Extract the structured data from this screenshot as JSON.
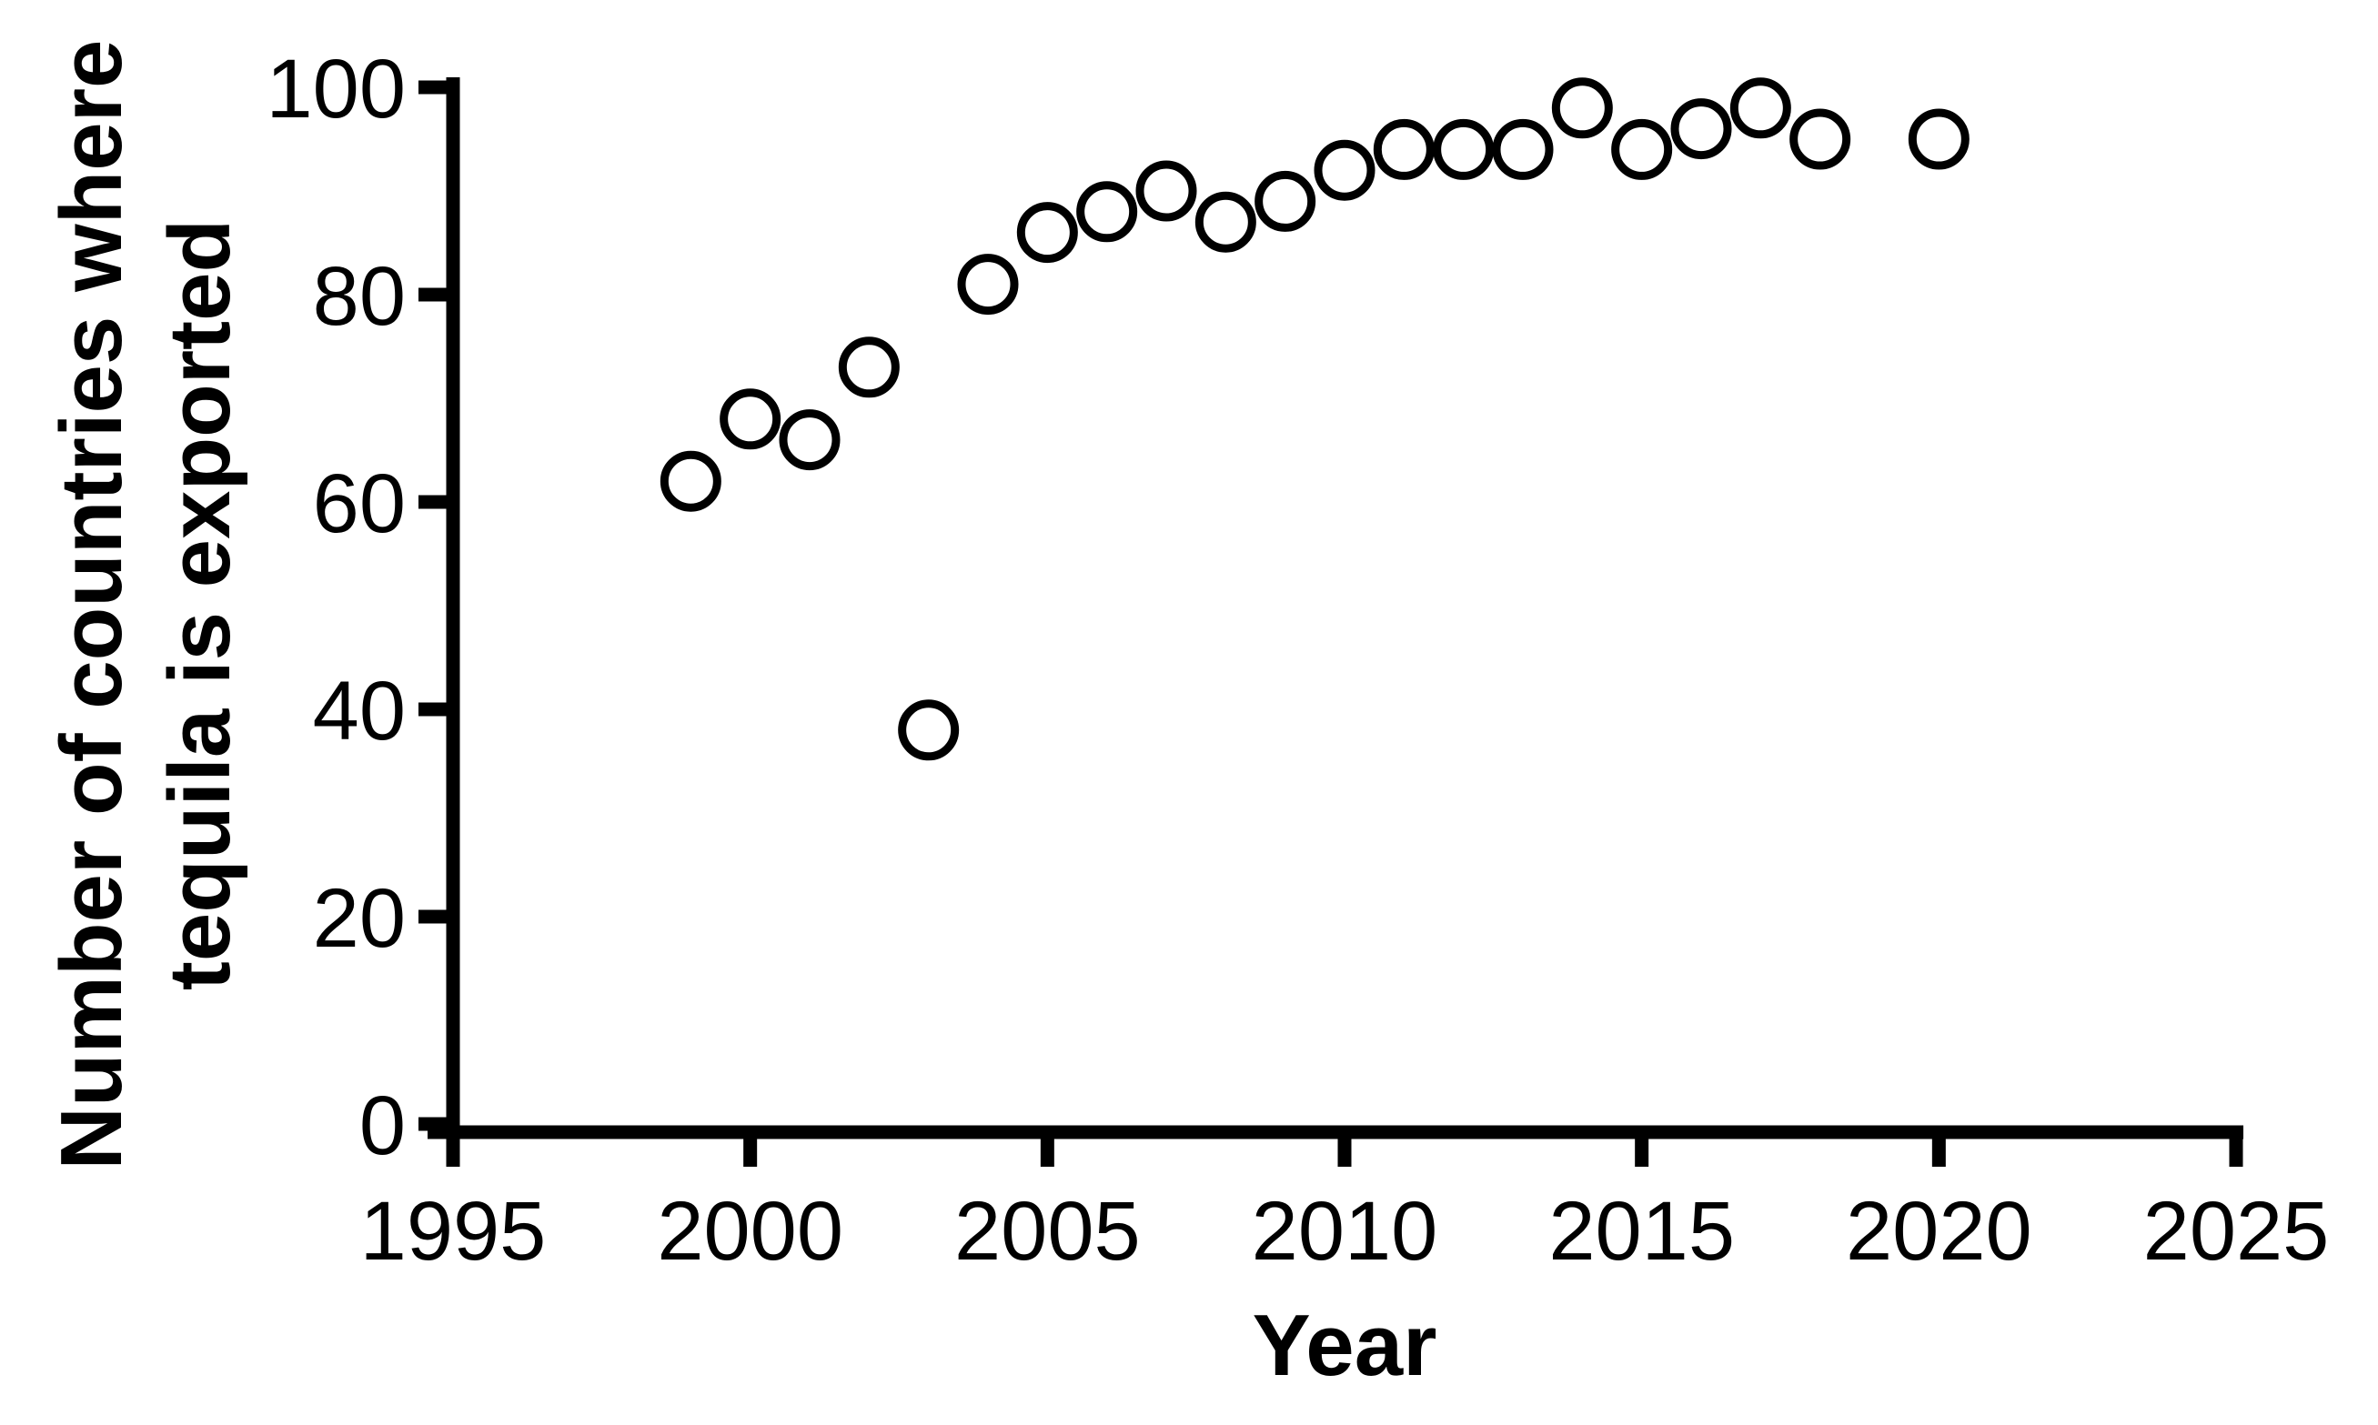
{
  "chart_data": {
    "type": "scatter",
    "title": "",
    "xlabel": "Year",
    "ylabel": "Number of countries where tequila is exported",
    "ylabel_lines": [
      "Number of countries where",
      "tequila is exported"
    ],
    "series": [
      {
        "name": "Countries where tequila is exported",
        "marker": "open-circle",
        "points": [
          {
            "x": 1999,
            "y": 62
          },
          {
            "x": 2000,
            "y": 68
          },
          {
            "x": 2001,
            "y": 66
          },
          {
            "x": 2002,
            "y": 73
          },
          {
            "x": 2003,
            "y": 38
          },
          {
            "x": 2004,
            "y": 81
          },
          {
            "x": 2005,
            "y": 86
          },
          {
            "x": 2006,
            "y": 88
          },
          {
            "x": 2007,
            "y": 90
          },
          {
            "x": 2008,
            "y": 87
          },
          {
            "x": 2009,
            "y": 89
          },
          {
            "x": 2010,
            "y": 92
          },
          {
            "x": 2011,
            "y": 94
          },
          {
            "x": 2012,
            "y": 94
          },
          {
            "x": 2013,
            "y": 94
          },
          {
            "x": 2014,
            "y": 98
          },
          {
            "x": 2015,
            "y": 94
          },
          {
            "x": 2016,
            "y": 96
          },
          {
            "x": 2017,
            "y": 98
          },
          {
            "x": 2018,
            "y": 95
          },
          {
            "x": 2020,
            "y": 95
          }
        ]
      }
    ],
    "xlim": [
      1995,
      2025
    ],
    "ylim": [
      0,
      100
    ],
    "x_ticks": [
      1995,
      2000,
      2005,
      2010,
      2015,
      2020,
      2025
    ],
    "y_ticks": [
      0,
      20,
      40,
      60,
      80,
      100
    ],
    "grid": false,
    "legend": null,
    "colors": {
      "background": "#ffffff",
      "axis": "#000000",
      "text": "#000000",
      "marker_stroke": "#000000",
      "marker_fill": "none"
    }
  }
}
